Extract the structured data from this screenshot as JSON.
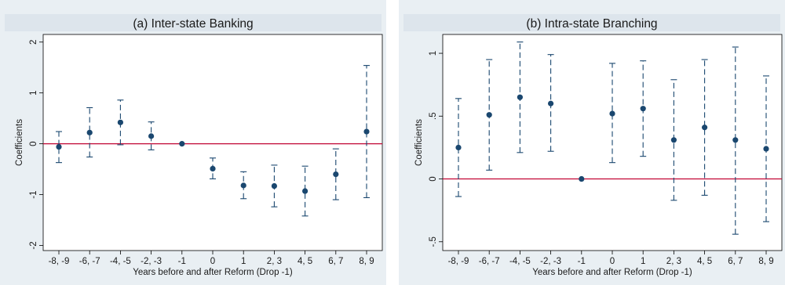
{
  "chart_data": [
    {
      "type": "scatter",
      "title": "(a) Inter-state Banking",
      "xlabel": "Years before and after Reform (Drop -1)",
      "ylabel": "Coefficients",
      "categories": [
        "-8, -9",
        "-6, -7",
        "-4, -5",
        "-2, -3",
        "-1",
        "0",
        "1",
        "2, 3",
        "4, 5",
        "6, 7",
        "8, 9"
      ],
      "ylim": [
        -2.1,
        2.15
      ],
      "yticks": [
        {
          "v": 2,
          "label": "2"
        },
        {
          "v": 1,
          "label": "1"
        },
        {
          "v": 0,
          "label": "0"
        },
        {
          "v": -1,
          "label": "-1"
        },
        {
          "v": -2,
          "label": "-2"
        }
      ],
      "reference_line": 0,
      "series": [
        {
          "estimates": [
            -0.06,
            0.22,
            0.42,
            0.15,
            0.0,
            -0.49,
            -0.82,
            -0.83,
            -0.93,
            -0.6,
            0.24
          ],
          "ci_lower": [
            -0.37,
            -0.26,
            -0.02,
            -0.12,
            0.0,
            -0.69,
            -1.08,
            -1.24,
            -1.42,
            -1.1,
            -1.06
          ],
          "ci_upper": [
            0.24,
            0.71,
            0.86,
            0.43,
            0.0,
            -0.28,
            -0.55,
            -0.42,
            -0.44,
            -0.1,
            1.54
          ]
        }
      ],
      "colors": {
        "point": "#1a476f",
        "ci": "#1a476f",
        "refline": "#c10534"
      }
    },
    {
      "type": "scatter",
      "title": "(b) Intra-state Branching",
      "xlabel": "Years before and after Reform (Drop -1)",
      "ylabel": "Coefficients",
      "categories": [
        "-8, -9",
        "-6, -7",
        "-4, -5",
        "-2, -3",
        "-1",
        "0",
        "1",
        "2, 3",
        "4, 5",
        "6, 7",
        "8, 9"
      ],
      "ylim": [
        -0.57,
        1.15
      ],
      "yticks": [
        {
          "v": 1,
          "label": "1"
        },
        {
          "v": 0.5,
          "label": ".5"
        },
        {
          "v": 0,
          "label": "0"
        },
        {
          "v": -0.5,
          "label": "-.5"
        }
      ],
      "reference_line": 0,
      "series": [
        {
          "estimates": [
            0.25,
            0.51,
            0.65,
            0.6,
            0.0,
            0.52,
            0.56,
            0.31,
            0.41,
            0.31,
            0.24
          ],
          "ci_lower": [
            -0.14,
            0.07,
            0.21,
            0.22,
            0.0,
            0.13,
            0.18,
            -0.17,
            -0.13,
            -0.44,
            -0.34
          ],
          "ci_upper": [
            0.64,
            0.95,
            1.09,
            0.99,
            0.0,
            0.92,
            0.94,
            0.79,
            0.95,
            1.05,
            0.82
          ]
        }
      ],
      "colors": {
        "point": "#1a476f",
        "ci": "#1a476f",
        "refline": "#c10534"
      }
    }
  ]
}
